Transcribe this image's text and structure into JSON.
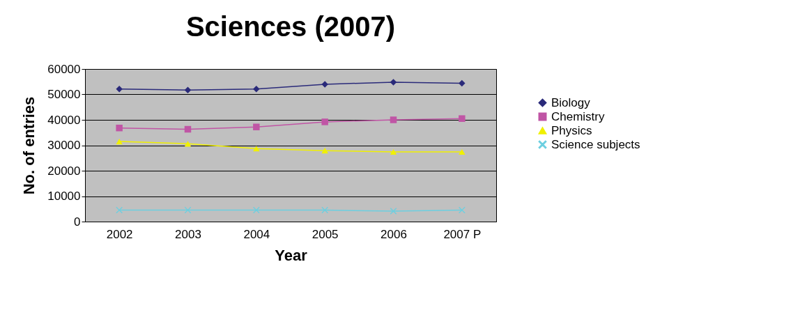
{
  "chart_data": {
    "type": "line",
    "title": "Sciences (2007)",
    "xlabel": "Year",
    "ylabel": "No. of entries",
    "categories": [
      "2002",
      "2003",
      "2004",
      "2005",
      "2006",
      "2007 P"
    ],
    "series": [
      {
        "name": "Biology",
        "color": "#2a2a7a",
        "marker": "diamond",
        "values": [
          52100,
          51700,
          52100,
          54000,
          54800,
          54400
        ]
      },
      {
        "name": "Chemistry",
        "color": "#c055a5",
        "marker": "square",
        "values": [
          36800,
          36300,
          37200,
          39200,
          40000,
          40500
        ]
      },
      {
        "name": "Physics",
        "color": "#f0f000",
        "marker": "triangle",
        "values": [
          31500,
          30600,
          28700,
          27900,
          27400,
          27400
        ]
      },
      {
        "name": "Science subjects",
        "color": "#6ccfe0",
        "marker": "cross",
        "values": [
          4500,
          4500,
          4500,
          4500,
          4100,
          4500
        ]
      }
    ],
    "ylim": [
      0,
      60000
    ],
    "yticks": [
      0,
      10000,
      20000,
      30000,
      40000,
      50000,
      60000
    ],
    "grid": "y",
    "legend": "right"
  }
}
